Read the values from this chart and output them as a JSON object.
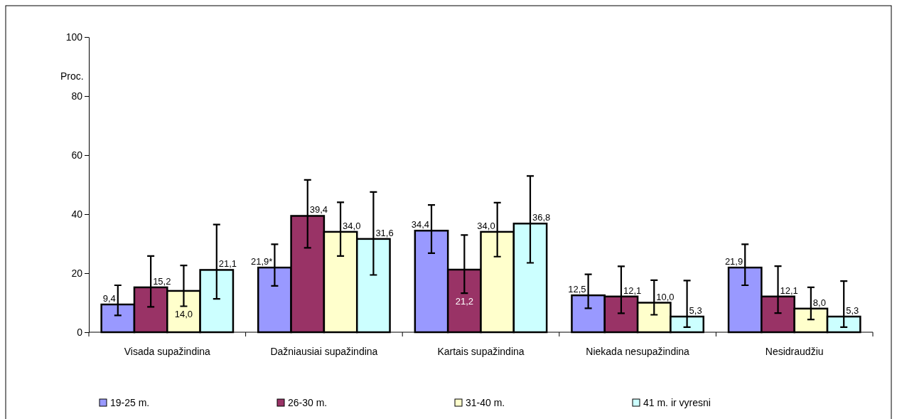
{
  "chart_data": {
    "type": "bar",
    "ylabel": "Proc.",
    "categories": [
      "Visada supažindina",
      "Dažniausiai supažindina",
      "Kartais supažindina",
      "Niekada nesupažindina",
      "Nesidraudžiu"
    ],
    "series": [
      {
        "name": "19-25 m.",
        "color": "#9999ff",
        "values": [
          9.4,
          21.9,
          34.4,
          12.5,
          21.9
        ],
        "value_labels": [
          "9,4",
          "21,9*",
          "34,4",
          "12,5",
          "21,9"
        ],
        "errors": [
          [
            5.7,
            15.9
          ],
          [
            15.7,
            29.8
          ],
          [
            26.8,
            43.1
          ],
          [
            8.1,
            19.6
          ],
          [
            15.9,
            29.8
          ]
        ]
      },
      {
        "name": "26-30 m.",
        "color": "#993366",
        "values": [
          15.2,
          39.4,
          21.2,
          12.1,
          12.1
        ],
        "value_labels": [
          "15,2",
          "39,4",
          "21,2",
          "12,1",
          "12,1"
        ],
        "errors": [
          [
            8.6,
            25.8
          ],
          [
            28.6,
            51.6
          ],
          [
            13.2,
            32.9
          ],
          [
            6.4,
            22.3
          ],
          [
            6.5,
            22.4
          ]
        ]
      },
      {
        "name": "31-40 m.",
        "color": "#ffffcc",
        "values": [
          14.0,
          34.0,
          34.0,
          10.0,
          8.0
        ],
        "value_labels": [
          "14,0",
          "34,0",
          "34,0",
          "10,0",
          "8,0"
        ],
        "errors": [
          [
            8.8,
            22.6
          ],
          [
            25.8,
            44.0
          ],
          [
            25.6,
            43.9
          ],
          [
            5.9,
            17.6
          ],
          [
            4.3,
            15.2
          ]
        ]
      },
      {
        "name": "41 m. ir vyresni",
        "color": "#ccffff",
        "values": [
          21.1,
          31.6,
          36.8,
          5.3,
          5.3
        ],
        "value_labels": [
          "21,1",
          "31,6",
          "36,8",
          "5,3",
          "5,3"
        ],
        "errors": [
          [
            11.3,
            36.5
          ],
          [
            19.4,
            47.5
          ],
          [
            23.5,
            52.9
          ],
          [
            1.7,
            17.5
          ],
          [
            1.7,
            17.3
          ]
        ]
      }
    ],
    "ylim": [
      0,
      100
    ],
    "yticks": [
      0,
      20,
      40,
      60,
      80,
      100
    ],
    "legend": "bottom",
    "grid": false
  }
}
